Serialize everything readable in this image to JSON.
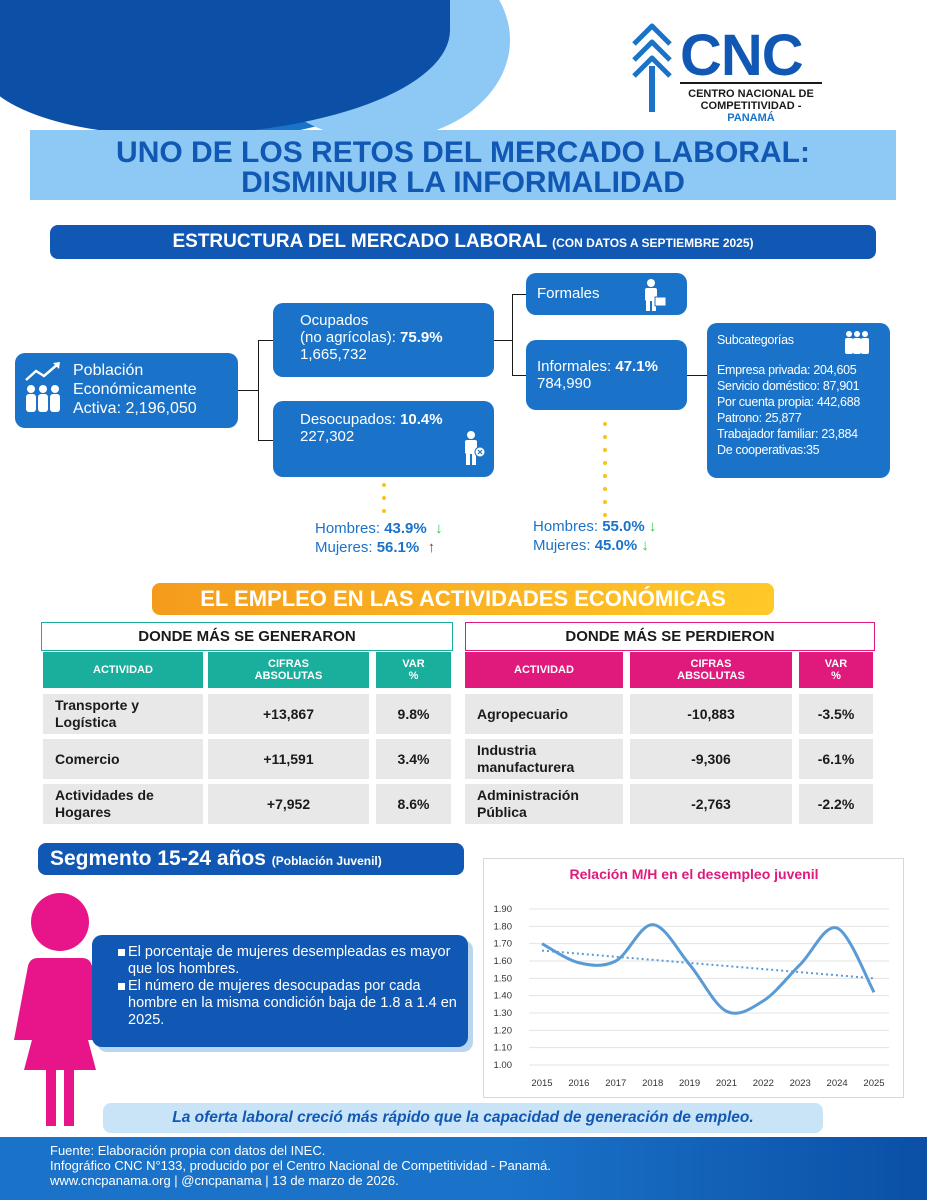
{
  "logo": {
    "brand": "CNC",
    "line1": "CENTRO NACIONAL DE",
    "line2a": "COMPETITIVIDAD - ",
    "line2b": "PANAMÁ"
  },
  "title": {
    "line1": "UNO DE LOS RETOS DEL MERCADO LABORAL:",
    "line2": "DISMINUIR LA INFORMALIDAD"
  },
  "structure": {
    "heading": "ESTRUCTURA DEL MERCADO LABORAL",
    "heading_note": "(CON DATOS A SEPTIEMBRE 2025)",
    "pea": {
      "line1": "Población",
      "line2": "Económicamente",
      "line3": "Activa: 2,196,050"
    },
    "ocupados": {
      "line1": "Ocupados",
      "line2": "(no agrícolas): ",
      "pct": "75.9%",
      "value": "1,665,732"
    },
    "desocupados": {
      "label": "Desocupados: ",
      "pct": "10.4%",
      "value": "227,302"
    },
    "formales": {
      "label": "Formales"
    },
    "informales": {
      "label": "Informales: ",
      "pct": "47.1%",
      "value": "784,990"
    },
    "subcat": {
      "title": "Subcategorías",
      "items": [
        "Empresa privada: 204,605",
        "Servicio doméstico: 87,901",
        "Por cuenta propia: 442,688",
        "Patrono: 25,877",
        "Trabajador familiar: 23,884",
        "De cooperativas:35"
      ]
    },
    "desocupados_gender": {
      "men_label": "Hombres: ",
      "men_pct": "43.9%",
      "men_arrow": "↓",
      "women_label": "Mujeres:  ",
      "women_pct": "56.1%",
      "women_arrow": "↑"
    },
    "informales_gender": {
      "men_label": "Hombres: ",
      "men_pct": "55.0%",
      "men_arrow": "↓",
      "women_label": "Mujeres: ",
      "women_pct": "45.0%",
      "women_arrow": "↓"
    }
  },
  "employment": {
    "heading": "EL EMPLEO EN LAS ACTIVIDADES ECONÓMICAS",
    "generated": {
      "title": "DONDE MÁS SE GENERARON",
      "headers": [
        "ACTIVIDAD",
        "CIFRAS ABSOLUTAS",
        "VAR %"
      ],
      "rows": [
        {
          "activity": "Transporte y Logística",
          "abs": "+13,867",
          "var": "9.8%"
        },
        {
          "activity": "Comercio",
          "abs": "+11,591",
          "var": "3.4%"
        },
        {
          "activity": "Actividades de Hogares",
          "abs": "+7,952",
          "var": "8.6%"
        }
      ]
    },
    "lost": {
      "title": "DONDE MÁS SE PERDIERON",
      "headers": [
        "ACTIVIDAD",
        "CIFRAS ABSOLUTAS",
        "VAR %"
      ],
      "rows": [
        {
          "activity": "Agropecuario",
          "abs": "-10,883",
          "var": "-3.5%"
        },
        {
          "activity": "Industria manufacturera",
          "abs": "-9,306",
          "var": "-6.1%"
        },
        {
          "activity": "Administración Pública",
          "abs": "-2,763",
          "var": "-2.2%"
        }
      ]
    }
  },
  "segment": {
    "heading": "Segmento 15-24 años",
    "heading_note": "(Población Juvenil)",
    "bullets": [
      "El porcentaje de mujeres desempleadas es mayor que los hombres.",
      "El número de mujeres desocupadas por cada hombre en la misma condición baja de 1.8 a 1.4 en 2025."
    ]
  },
  "chart_data": {
    "type": "line",
    "title": "Relación M/H en el desempleo juvenil",
    "x": [
      "2015",
      "2016",
      "2017",
      "2018",
      "2019",
      "2021",
      "2022",
      "2023",
      "2024",
      "2025"
    ],
    "series": [
      {
        "values": [
          1.7,
          1.59,
          1.6,
          1.81,
          1.58,
          1.31,
          1.37,
          1.58,
          1.79,
          1.42
        ]
      }
    ],
    "trendline": {
      "start": 1.66,
      "end": 1.5
    },
    "yticks": [
      "1.90",
      "1.80",
      "1.70",
      "1.60",
      "1.50",
      "1.40",
      "1.30",
      "1.20",
      "1.10",
      "1.00"
    ],
    "ylim": [
      1.0,
      1.9
    ],
    "grid": true,
    "colors": {
      "line": "#5b9bd5",
      "title": "#e0197d"
    }
  },
  "quote": "La oferta laboral creció más rápido que la capacidad de generación de empleo.",
  "footer": {
    "line1": "Fuente: Elaboración propia con datos del INEC.",
    "line2": "Infográfico CNC N°133, producido por el Centro Nacional de Competitividad - Panamá.",
    "line3": "www.cncpanama.org | @cncpanama | 13 de marzo de 2026."
  },
  "colors": {
    "primary": "#1058b4",
    "secondary": "#1a73c9",
    "light": "#8ec8f4",
    "teal": "#1aae9c",
    "magenta": "#e0197d",
    "orange": "#f59b1c"
  }
}
